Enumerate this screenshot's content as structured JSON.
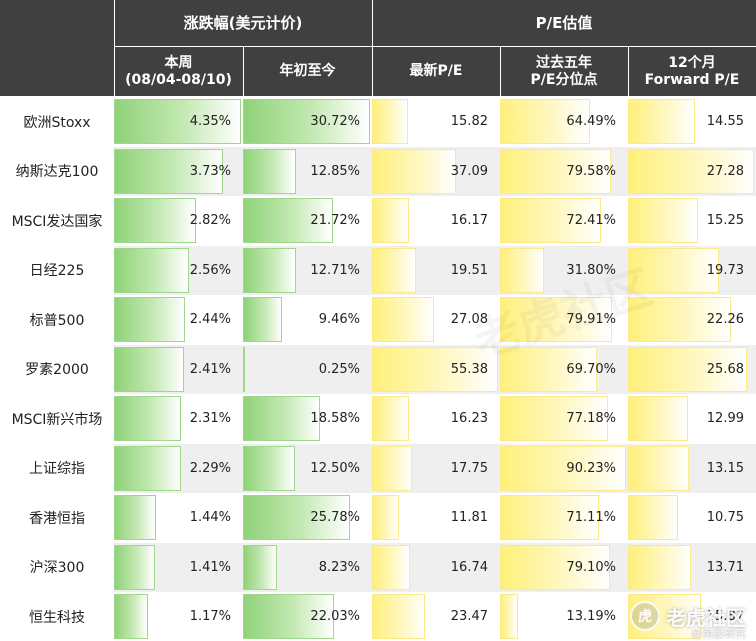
{
  "colors": {
    "header_bg": "#404040",
    "header_text": "#ffffff",
    "green_bar": "#8fd278",
    "yellow_bar": "#fff07a",
    "alt_row": "#efefef"
  },
  "header": {
    "group_change": "涨跌幅(美元计价)",
    "group_pe": "P/E估值",
    "col_week": "本周\n(08/04-08/10)",
    "col_ytd": "年初至今",
    "col_pe": "最新P/E",
    "col_pe5y": "过去五年\nP/E分位点",
    "col_fwd": "12个月\nForward P/E"
  },
  "rows": [
    {
      "name": "欧洲Stoxx",
      "week": "4.35%",
      "ytd": "30.72%",
      "pe": "15.82",
      "pe5y": "64.49%",
      "fwd": "14.55"
    },
    {
      "name": "纳斯达克100",
      "week": "3.73%",
      "ytd": "12.85%",
      "pe": "37.09",
      "pe5y": "79.58%",
      "fwd": "27.28"
    },
    {
      "name": "MSCI发达国家",
      "week": "2.82%",
      "ytd": "21.72%",
      "pe": "16.17",
      "pe5y": "72.41%",
      "fwd": "15.25"
    },
    {
      "name": "日经225",
      "week": "2.56%",
      "ytd": "12.71%",
      "pe": "19.51",
      "pe5y": "31.80%",
      "fwd": "19.73"
    },
    {
      "name": "标普500",
      "week": "2.44%",
      "ytd": "9.46%",
      "pe": "27.08",
      "pe5y": "79.91%",
      "fwd": "22.26"
    },
    {
      "name": "罗素2000",
      "week": "2.41%",
      "ytd": "0.25%",
      "pe": "55.38",
      "pe5y": "69.70%",
      "fwd": "25.68"
    },
    {
      "name": "MSCI新兴市场",
      "week": "2.31%",
      "ytd": "18.58%",
      "pe": "16.23",
      "pe5y": "77.18%",
      "fwd": "12.99"
    },
    {
      "name": "上证综指",
      "week": "2.29%",
      "ytd": "12.50%",
      "pe": "17.75",
      "pe5y": "90.23%",
      "fwd": "13.15"
    },
    {
      "name": "香港恒指",
      "week": "1.44%",
      "ytd": "25.78%",
      "pe": "11.81",
      "pe5y": "71.11%",
      "fwd": "10.75"
    },
    {
      "name": "沪深300",
      "week": "1.41%",
      "ytd": "8.23%",
      "pe": "16.74",
      "pe5y": "79.10%",
      "fwd": "13.71"
    },
    {
      "name": "恒生科技",
      "week": "1.17%",
      "ytd": "22.03%",
      "pe": "23.47",
      "pe5y": "13.19%",
      "fwd": "15.87"
    }
  ],
  "watermark": {
    "center": "老虎社区",
    "logo_glyph": "虎",
    "logo_text": "老虎社区",
    "logo_sub": "@美股研究"
  }
}
